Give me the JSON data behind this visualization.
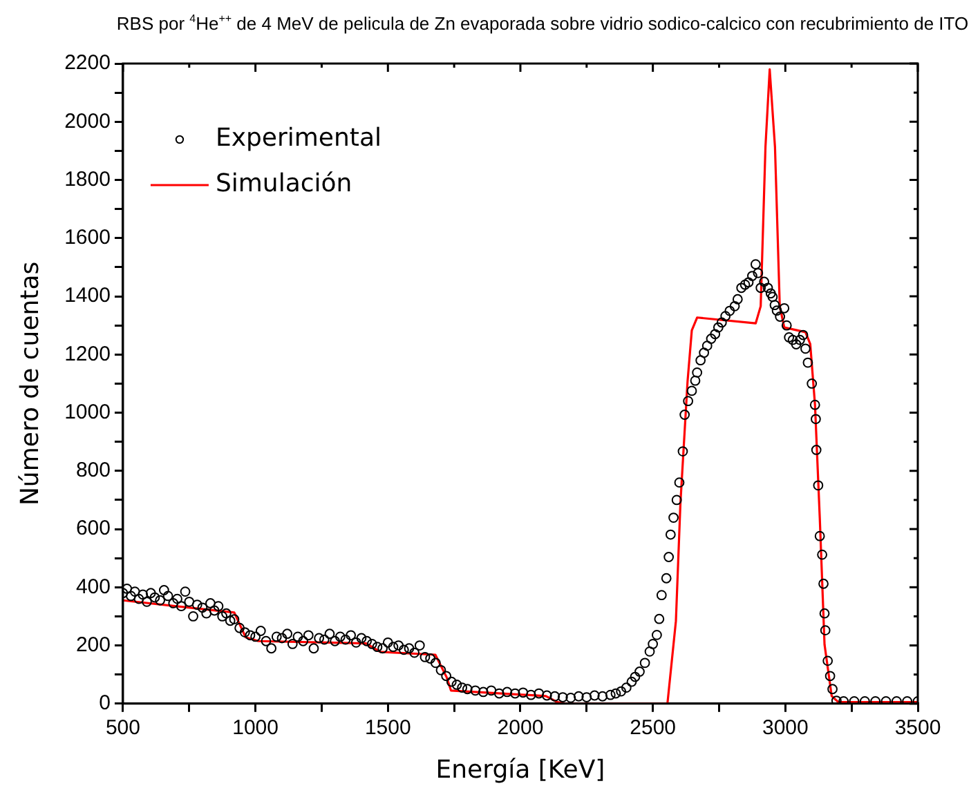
{
  "chart_data": {
    "type": "scatter",
    "title": "RBS por $^{4}$He$^{++}$ de 4 MeV de pelicula de Zn evaporada sobre vidrio sodico-calcico con recubrimiento de ITO",
    "xlabel": "Energía [KeV]",
    "ylabel": "Número de cuentas",
    "xlim": [
      500,
      3500
    ],
    "xticks": [
      500,
      {
        "value": 750,
        "label": null
      },
      1000,
      {
        "value": 1250,
        "label": null
      },
      1500,
      {
        "value": 1750,
        "label": null
      },
      2000,
      {
        "value": 2250,
        "label": null
      },
      2500,
      {
        "value": 2750,
        "label": null
      },
      3000,
      {
        "value": 3250,
        "label": null
      },
      3500
    ],
    "ylim": [
      0,
      2200
    ],
    "yticks": [
      0,
      {
        "value": 100,
        "label": null
      },
      200,
      {
        "value": 300,
        "label": null
      },
      400,
      {
        "value": 500,
        "label": null
      },
      600,
      {
        "value": 700,
        "label": null
      },
      800,
      {
        "value": 900,
        "label": null
      },
      1000,
      {
        "value": 1100,
        "label": null
      },
      1200,
      {
        "value": 1300,
        "label": null
      },
      1400,
      {
        "value": 1500,
        "label": null
      },
      1600,
      {
        "value": 1700,
        "label": null
      },
      1800,
      {
        "value": 1900,
        "label": null
      },
      2000,
      {
        "value": 2100,
        "label": null
      },
      2200
    ],
    "legend": "top left",
    "grid": false,
    "series": [
      {
        "name": "Experimental",
        "marker": "circle",
        "color": "#000000",
        "x": [
          500,
          515,
          530,
          545,
          560,
          575,
          590,
          605,
          620,
          640,
          655,
          670,
          690,
          705,
          720,
          735,
          750,
          765,
          780,
          800,
          815,
          830,
          845,
          860,
          875,
          890,
          905,
          920,
          940,
          960,
          980,
          1000,
          1020,
          1040,
          1060,
          1080,
          1100,
          1120,
          1140,
          1160,
          1180,
          1200,
          1220,
          1240,
          1260,
          1280,
          1300,
          1320,
          1340,
          1360,
          1380,
          1400,
          1420,
          1440,
          1460,
          1480,
          1500,
          1520,
          1540,
          1560,
          1580,
          1600,
          1620,
          1640,
          1660,
          1680,
          1700,
          1720,
          1740,
          1760,
          1780,
          1800,
          1830,
          1860,
          1890,
          1920,
          1950,
          1980,
          2010,
          2040,
          2070,
          2100,
          2130,
          2160,
          2190,
          2220,
          2250,
          2280,
          2310,
          2340,
          2360,
          2380,
          2400,
          2420,
          2433,
          2450,
          2470,
          2488,
          2500,
          2515,
          2524,
          2533,
          2551,
          2560,
          2567,
          2578,
          2590,
          2600,
          2613,
          2620,
          2633,
          2647,
          2660,
          2667,
          2680,
          2693,
          2705,
          2720,
          2735,
          2747,
          2760,
          2774,
          2790,
          2809,
          2820,
          2834,
          2848,
          2861,
          2875,
          2888,
          2897,
          2907,
          2920,
          2934,
          2945,
          2952,
          2960,
          2968,
          2980,
          2996,
          3005,
          3014,
          3028,
          3041,
          3055,
          3067,
          3076,
          3085,
          3100,
          3112,
          3115,
          3117,
          3124,
          3130,
          3139,
          3144,
          3148,
          3151,
          3160,
          3169,
          3178,
          3193,
          3220,
          3260,
          3300,
          3340,
          3380,
          3420,
          3460,
          3500
        ],
        "values": [
          380,
          395,
          370,
          385,
          360,
          375,
          350,
          380,
          365,
          355,
          390,
          370,
          345,
          360,
          335,
          385,
          350,
          300,
          340,
          330,
          310,
          345,
          320,
          335,
          300,
          310,
          285,
          290,
          260,
          245,
          235,
          230,
          250,
          215,
          190,
          230,
          225,
          240,
          205,
          230,
          215,
          235,
          190,
          225,
          220,
          240,
          215,
          230,
          220,
          235,
          210,
          225,
          215,
          205,
          195,
          190,
          210,
          195,
          200,
          185,
          190,
          175,
          200,
          160,
          155,
          140,
          115,
          95,
          75,
          65,
          55,
          50,
          45,
          40,
          45,
          35,
          40,
          35,
          38,
          30,
          35,
          28,
          25,
          22,
          20,
          25,
          22,
          28,
          25,
          30,
          35,
          42,
          55,
          75,
          92,
          110,
          140,
          179,
          205,
          236,
          291,
          373,
          431,
          504,
          581,
          639,
          700,
          760,
          867,
          993,
          1040,
          1075,
          1110,
          1138,
          1180,
          1206,
          1230,
          1254,
          1270,
          1293,
          1310,
          1332,
          1350,
          1366,
          1390,
          1429,
          1440,
          1448,
          1470,
          1510,
          1480,
          1429,
          1450,
          1429,
          1410,
          1398,
          1370,
          1351,
          1330,
          1359,
          1300,
          1259,
          1250,
          1235,
          1250,
          1267,
          1220,
          1172,
          1100,
          1027,
          978,
          872,
          750,
          576,
          512,
          412,
          310,
          252,
          147,
          95,
          50,
          10,
          8,
          8,
          8,
          8,
          8,
          8,
          8,
          8
        ]
      },
      {
        "name": "Simulación",
        "type": "line",
        "marker": "none",
        "line_style": "solid",
        "color": "#ff0000",
        "x": [
          500,
          920,
          963,
          1011,
          1418,
          1471,
          1679,
          1722,
          1738,
          2096,
          2140,
          2170,
          2555,
          2587,
          2604,
          2631,
          2647,
          2667,
          2888,
          2907,
          2925,
          2941,
          2961,
          2979,
          2996,
          3076,
          3094,
          3112,
          3130,
          3148,
          3175,
          3200,
          3500
        ],
        "values": [
          355,
          313,
          228,
          215,
          207,
          178,
          168,
          90,
          45,
          26,
          5,
          0,
          0,
          284,
          688,
          1108,
          1283,
          1327,
          1307,
          1366,
          1913,
          2180,
          1913,
          1366,
          1293,
          1277,
          1236,
          1027,
          639,
          203,
          26,
          5,
          5
        ]
      }
    ]
  }
}
